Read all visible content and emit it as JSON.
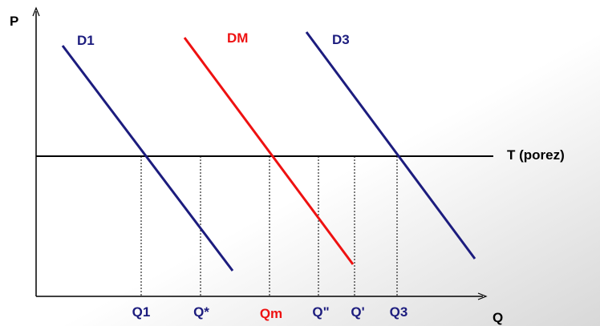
{
  "axes": {
    "y": "P",
    "x": "Q"
  },
  "curves": [
    {
      "label": "D1"
    },
    {
      "label": "DM"
    },
    {
      "label": "D3"
    }
  ],
  "tax_line": {
    "label": "T (porez)"
  },
  "quantities": [
    "Q1",
    "Q*",
    "Qm",
    "Q\"",
    "Q'",
    "Q3"
  ]
}
